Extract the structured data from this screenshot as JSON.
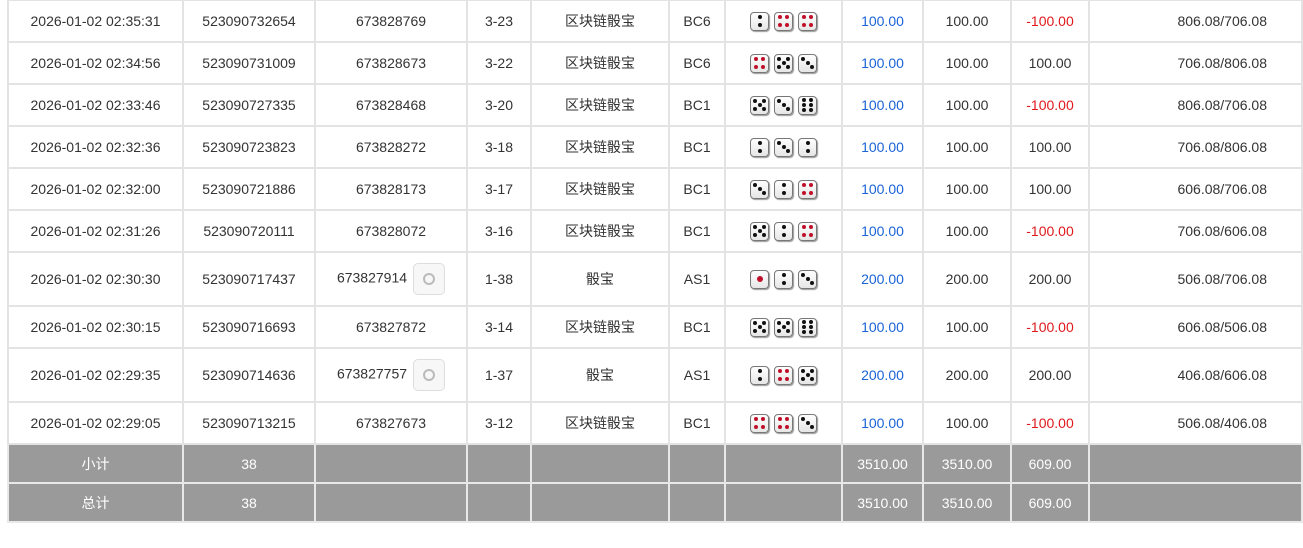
{
  "rows": [
    {
      "time": "2026-01-02 02:35:31",
      "order": "523090732654",
      "round": "673828769",
      "video": false,
      "table": "3-23",
      "game": "区块链骰宝",
      "code": "BC6",
      "dice": [
        2,
        4,
        4
      ],
      "bet": "100.00",
      "valid": "100.00",
      "win": "-100.00",
      "balance": "806.08/706.08"
    },
    {
      "time": "2026-01-02 02:34:56",
      "order": "523090731009",
      "round": "673828673",
      "video": false,
      "table": "3-22",
      "game": "区块链骰宝",
      "code": "BC6",
      "dice": [
        4,
        5,
        3
      ],
      "bet": "100.00",
      "valid": "100.00",
      "win": "100.00",
      "balance": "706.08/806.08"
    },
    {
      "time": "2026-01-02 02:33:46",
      "order": "523090727335",
      "round": "673828468",
      "video": false,
      "table": "3-20",
      "game": "区块链骰宝",
      "code": "BC1",
      "dice": [
        5,
        3,
        6
      ],
      "bet": "100.00",
      "valid": "100.00",
      "win": "-100.00",
      "balance": "806.08/706.08"
    },
    {
      "time": "2026-01-02 02:32:36",
      "order": "523090723823",
      "round": "673828272",
      "video": false,
      "table": "3-18",
      "game": "区块链骰宝",
      "code": "BC1",
      "dice": [
        2,
        3,
        2
      ],
      "bet": "100.00",
      "valid": "100.00",
      "win": "100.00",
      "balance": "706.08/806.08"
    },
    {
      "time": "2026-01-02 02:32:00",
      "order": "523090721886",
      "round": "673828173",
      "video": false,
      "table": "3-17",
      "game": "区块链骰宝",
      "code": "BC1",
      "dice": [
        3,
        2,
        4
      ],
      "bet": "100.00",
      "valid": "100.00",
      "win": "100.00",
      "balance": "606.08/706.08"
    },
    {
      "time": "2026-01-02 02:31:26",
      "order": "523090720111",
      "round": "673828072",
      "video": false,
      "table": "3-16",
      "game": "区块链骰宝",
      "code": "BC1",
      "dice": [
        5,
        2,
        4
      ],
      "bet": "100.00",
      "valid": "100.00",
      "win": "-100.00",
      "balance": "706.08/606.08"
    },
    {
      "time": "2026-01-02 02:30:30",
      "order": "523090717437",
      "round": "673827914",
      "video": true,
      "table": "1-38",
      "game": "骰宝",
      "code": "AS1",
      "dice": [
        1,
        2,
        3
      ],
      "bet": "200.00",
      "valid": "200.00",
      "win": "200.00",
      "balance": "506.08/706.08"
    },
    {
      "time": "2026-01-02 02:30:15",
      "order": "523090716693",
      "round": "673827872",
      "video": false,
      "table": "3-14",
      "game": "区块链骰宝",
      "code": "BC1",
      "dice": [
        5,
        5,
        6
      ],
      "bet": "100.00",
      "valid": "100.00",
      "win": "-100.00",
      "balance": "606.08/506.08"
    },
    {
      "time": "2026-01-02 02:29:35",
      "order": "523090714636",
      "round": "673827757",
      "video": true,
      "table": "1-37",
      "game": "骰宝",
      "code": "AS1",
      "dice": [
        2,
        4,
        5
      ],
      "bet": "200.00",
      "valid": "200.00",
      "win": "200.00",
      "balance": "406.08/606.08"
    },
    {
      "time": "2026-01-02 02:29:05",
      "order": "523090713215",
      "round": "673827673",
      "video": false,
      "table": "3-12",
      "game": "区块链骰宝",
      "code": "BC1",
      "dice": [
        4,
        4,
        3
      ],
      "bet": "100.00",
      "valid": "100.00",
      "win": "-100.00",
      "balance": "506.08/406.08"
    }
  ],
  "subtotal": {
    "label": "小计",
    "count": "38",
    "bet": "3510.00",
    "valid": "3510.00",
    "win": "609.00"
  },
  "total": {
    "label": "总计",
    "count": "38",
    "bet": "3510.00",
    "valid": "3510.00",
    "win": "609.00"
  },
  "colors": {
    "bet": "#1a64d6",
    "loss": "#e0191c",
    "summary_bg": "#9a9a9a"
  }
}
